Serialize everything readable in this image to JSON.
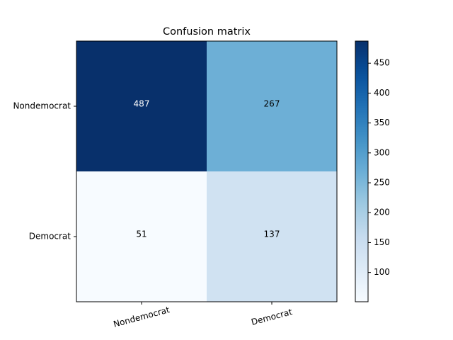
{
  "chart_data": {
    "type": "heatmap",
    "title": "Confusion matrix",
    "row_labels": [
      "Nondemocrat",
      "Democrat"
    ],
    "col_labels": [
      "Nondemocrat",
      "Democrat"
    ],
    "values": [
      [
        487,
        267
      ],
      [
        51,
        137
      ]
    ],
    "colormap": "Blues",
    "color_range": [
      51,
      487
    ],
    "colorbar_ticks": [
      100,
      150,
      200,
      250,
      300,
      350,
      400,
      450
    ],
    "xtick_rotation": 15,
    "grid": false
  }
}
